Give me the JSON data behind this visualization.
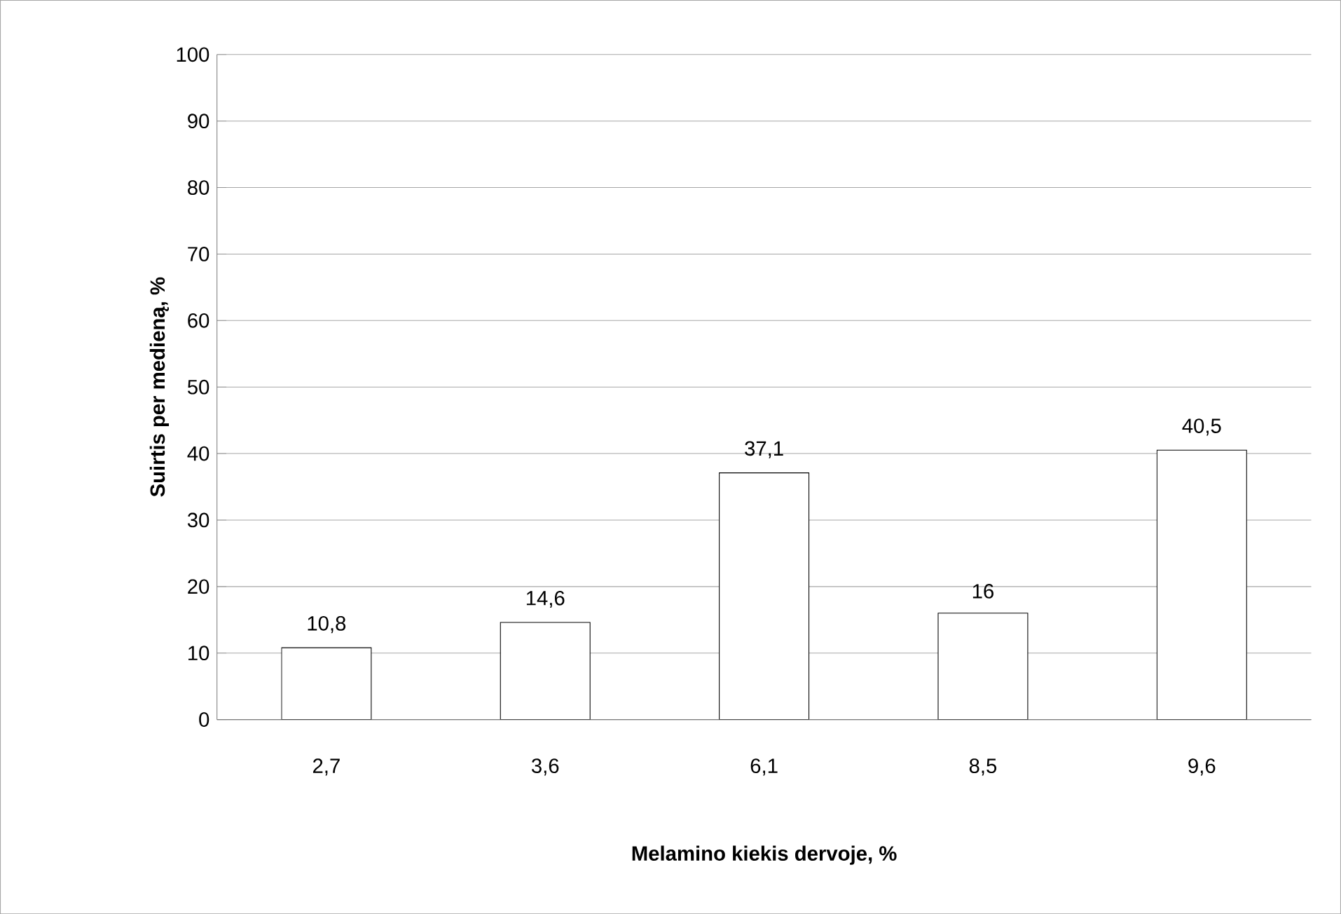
{
  "chart_data": {
    "type": "bar",
    "xlabel": "Melamino kiekis dervoje, %",
    "ylabel": "Suirtis per medieną, %",
    "categories": [
      "2,7",
      "3,6",
      "6,1",
      "8,5",
      "9,6"
    ],
    "values": [
      10.8,
      14.6,
      37.1,
      16,
      40.5
    ],
    "value_labels": [
      "10,8",
      "14,6",
      "37,1",
      "16",
      "40,5"
    ],
    "colors": [
      "#ffffff",
      "#ffffff",
      "#ffffff",
      "#ffffff",
      "#ffffff"
    ],
    "ylim": [
      0,
      100
    ],
    "yticks": [
      0,
      10,
      20,
      30,
      40,
      50,
      60,
      70,
      80,
      90,
      100
    ],
    "grid": "y"
  }
}
